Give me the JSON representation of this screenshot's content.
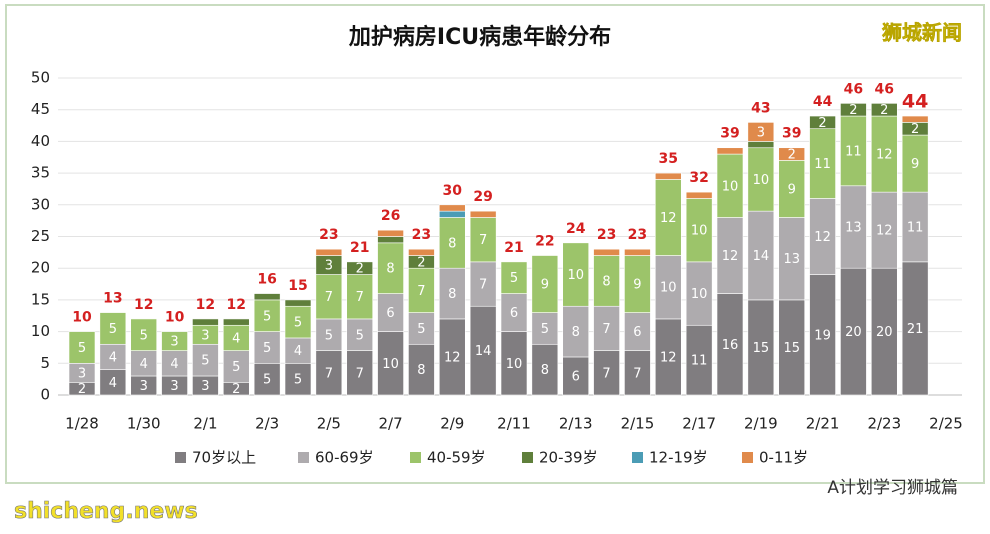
{
  "chart_data": {
    "type": "stacked-bar",
    "title": "加护病房ICU病患年龄分布",
    "watermark": "狮城新闻",
    "source": "shicheng.news",
    "footer": "A计划学习狮城篇",
    "categories": [
      "1/28",
      null,
      "1/30",
      null,
      "2/1",
      null,
      "2/3",
      null,
      "2/5",
      null,
      "2/7",
      null,
      "2/9",
      null,
      "2/11",
      null,
      "2/13",
      null,
      "2/15",
      null,
      "2/17",
      null,
      "2/19",
      null,
      "2/21",
      null,
      "2/23",
      null,
      "2/25"
    ],
    "series": [
      {
        "name": "70岁以上",
        "color": "#807d80",
        "values": [
          2,
          4,
          3,
          3,
          3,
          2,
          5,
          5,
          7,
          7,
          10,
          8,
          12,
          14,
          10,
          8,
          6,
          7,
          7,
          12,
          11,
          16,
          15,
          15,
          19,
          20,
          20,
          21,
          null
        ]
      },
      {
        "name": "60-69岁",
        "color": "#aeabae",
        "values": [
          3,
          4,
          4,
          4,
          5,
          5,
          5,
          4,
          5,
          5,
          6,
          5,
          8,
          7,
          6,
          5,
          8,
          7,
          6,
          10,
          10,
          12,
          14,
          13,
          12,
          13,
          12,
          11,
          null
        ]
      },
      {
        "name": "40-59岁",
        "color": "#9cc46a",
        "values": [
          5,
          5,
          5,
          3,
          3,
          4,
          5,
          5,
          7,
          7,
          8,
          7,
          8,
          7,
          5,
          9,
          10,
          8,
          9,
          12,
          10,
          10,
          10,
          9,
          11,
          11,
          12,
          9,
          null
        ]
      },
      {
        "name": "20-39岁",
        "color": "#5f7f3b",
        "values": [
          0,
          0,
          0,
          0,
          1,
          1,
          1,
          1,
          3,
          2,
          1,
          2,
          0,
          0,
          0,
          0,
          0,
          0,
          0,
          0,
          0,
          0,
          1,
          0,
          2,
          2,
          2,
          2,
          null
        ]
      },
      {
        "name": "12-19岁",
        "color": "#4b9cb5",
        "values": [
          0,
          0,
          0,
          0,
          0,
          0,
          0,
          0,
          0,
          0,
          0,
          0,
          1,
          0,
          0,
          0,
          0,
          0,
          0,
          0,
          0,
          0,
          0,
          0,
          0,
          0,
          0,
          0,
          null
        ]
      },
      {
        "name": "0-11岁",
        "color": "#e08a4b",
        "values": [
          0,
          0,
          0,
          0,
          0,
          0,
          0,
          0,
          1,
          0,
          1,
          1,
          1,
          1,
          0,
          0,
          0,
          1,
          1,
          1,
          1,
          1,
          3,
          2,
          0,
          0,
          0,
          1,
          null
        ]
      }
    ],
    "totals": [
      10,
      13,
      12,
      10,
      12,
      12,
      16,
      15,
      23,
      21,
      26,
      23,
      30,
      29,
      21,
      22,
      24,
      23,
      23,
      35,
      32,
      39,
      43,
      39,
      44,
      46,
      46,
      44,
      null
    ],
    "ylim": [
      0,
      50
    ],
    "yticks": [
      0,
      5,
      10,
      15,
      20,
      25,
      30,
      35,
      40,
      45,
      50
    ],
    "grid": true
  }
}
